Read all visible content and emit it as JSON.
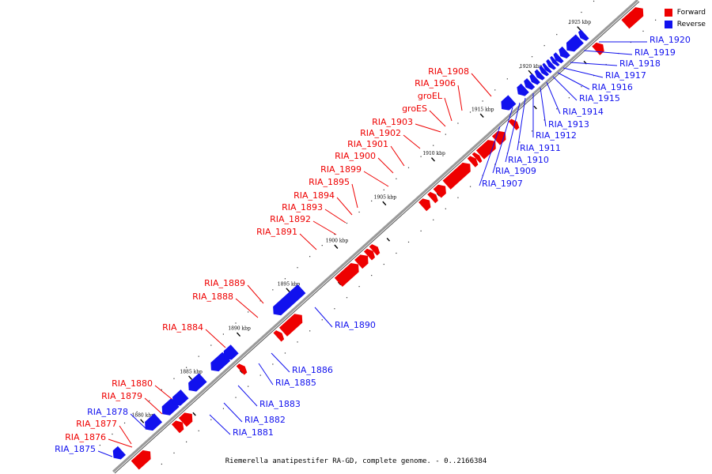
{
  "legend": {
    "forward": {
      "label": "Forward",
      "color": "#ee0000"
    },
    "reverse": {
      "label": "Reverse",
      "color": "#1111ee"
    }
  },
  "caption": "Riemerella anatipestifer RA-GD, complete genome. - 0..2166384",
  "ticks": [
    "1880 kbp",
    "1885 kbp",
    "1890 kbp",
    "1895 kbp",
    "1900 kbp",
    "1905 kbp",
    "1910 kbp",
    "1915 kbp",
    "1920 kbp",
    "1925 kbp"
  ],
  "genes": [
    {
      "name": "RIA_1875",
      "strand": "reverse"
    },
    {
      "name": "RIA_1876",
      "strand": "forward"
    },
    {
      "name": "RIA_1877",
      "strand": "forward"
    },
    {
      "name": "RIA_1878",
      "strand": "reverse"
    },
    {
      "name": "RIA_1879",
      "strand": "forward"
    },
    {
      "name": "RIA_1880",
      "strand": "forward"
    },
    {
      "name": "RIA_1881",
      "strand": "reverse"
    },
    {
      "name": "RIA_1882",
      "strand": "reverse"
    },
    {
      "name": "RIA_1883",
      "strand": "reverse"
    },
    {
      "name": "RIA_1884",
      "strand": "forward"
    },
    {
      "name": "RIA_1885",
      "strand": "reverse"
    },
    {
      "name": "RIA_1886",
      "strand": "reverse"
    },
    {
      "name": "RIA_1888",
      "strand": "forward"
    },
    {
      "name": "RIA_1889",
      "strand": "forward"
    },
    {
      "name": "RIA_1890",
      "strand": "reverse"
    },
    {
      "name": "RIA_1891",
      "strand": "forward"
    },
    {
      "name": "RIA_1892",
      "strand": "forward"
    },
    {
      "name": "RIA_1893",
      "strand": "forward"
    },
    {
      "name": "RIA_1894",
      "strand": "forward"
    },
    {
      "name": "RIA_1895",
      "strand": "forward"
    },
    {
      "name": "RIA_1899",
      "strand": "forward"
    },
    {
      "name": "RIA_1900",
      "strand": "forward"
    },
    {
      "name": "RIA_1901",
      "strand": "forward"
    },
    {
      "name": "RIA_1902",
      "strand": "forward"
    },
    {
      "name": "RIA_1903",
      "strand": "forward"
    },
    {
      "name": "groES",
      "strand": "forward"
    },
    {
      "name": "groEL",
      "strand": "forward"
    },
    {
      "name": "RIA_1906",
      "strand": "forward"
    },
    {
      "name": "RIA_1908",
      "strand": "forward"
    },
    {
      "name": "RIA_1907",
      "strand": "reverse"
    },
    {
      "name": "RIA_1909",
      "strand": "reverse"
    },
    {
      "name": "RIA_1910",
      "strand": "reverse"
    },
    {
      "name": "RIA_1911",
      "strand": "reverse"
    },
    {
      "name": "RIA_1912",
      "strand": "reverse"
    },
    {
      "name": "RIA_1913",
      "strand": "reverse"
    },
    {
      "name": "RIA_1914",
      "strand": "reverse"
    },
    {
      "name": "RIA_1915",
      "strand": "reverse"
    },
    {
      "name": "RIA_1916",
      "strand": "reverse"
    },
    {
      "name": "RIA_1917",
      "strand": "reverse"
    },
    {
      "name": "RIA_1918",
      "strand": "reverse"
    },
    {
      "name": "RIA_1919",
      "strand": "reverse"
    },
    {
      "name": "RIA_1920",
      "strand": "reverse"
    }
  ]
}
